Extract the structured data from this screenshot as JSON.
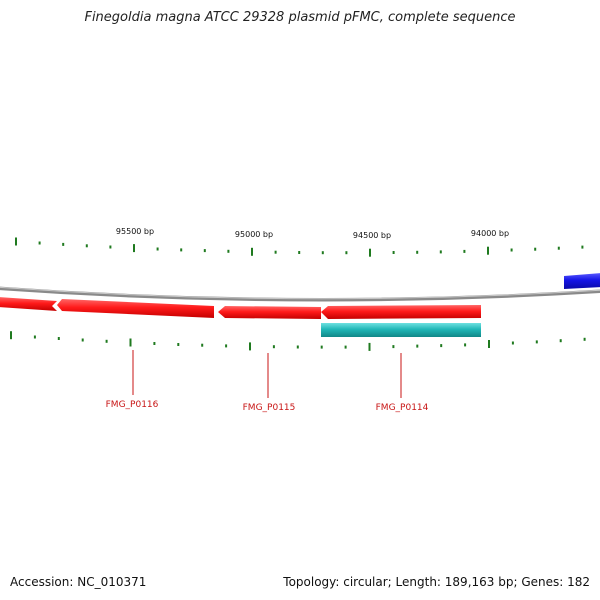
{
  "title": "Finegoldia magna ATCC 29328 plasmid pFMC, complete sequence",
  "colors": {
    "backbone": "#8a8a8a",
    "tick": "#1f7a1f",
    "gene_red": "#ff1a1a",
    "gene_cyan": "#20b7b7",
    "gene_blue": "#1515e6",
    "label": "#c81515"
  },
  "scale": {
    "labels": [
      {
        "bp": 95500,
        "text": "95500 bp"
      },
      {
        "bp": 95000,
        "text": "95000 bp"
      },
      {
        "bp": 94500,
        "text": "94500 bp"
      },
      {
        "bp": 94000,
        "text": "94000 bp"
      }
    ]
  },
  "genes": [
    {
      "name": "FMG_P0116",
      "strand": "forward",
      "color": "red",
      "labeled": true
    },
    {
      "name": "FMG_P0115",
      "strand": "forward",
      "color": "red",
      "labeled": true
    },
    {
      "name": "FMG_P0114",
      "strand": "forward",
      "color": "red",
      "labeled": true
    },
    {
      "name": "",
      "strand": "reverse",
      "color": "cyan",
      "labeled": false
    },
    {
      "name": "",
      "strand": "forward",
      "color": "blue",
      "labeled": false
    }
  ],
  "footer": {
    "accession": "Accession: NC_010371",
    "stats": "Topology: circular; Length: 189,163 bp; Genes: 182"
  }
}
